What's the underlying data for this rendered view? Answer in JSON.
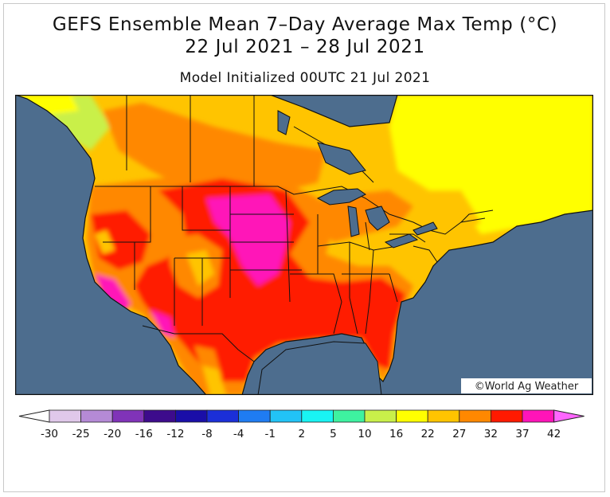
{
  "header": {
    "title": "GEFS Ensemble Mean 7–Day Average Max Temp (°C)",
    "dates": "22 Jul 2021 – 28 Jul 2021",
    "init": "Model Initialized 00UTC 21 Jul 2021"
  },
  "map": {
    "ocean_color": "#4d6d8e",
    "copyright": "©World Ag Weather"
  },
  "legend": {
    "labels": [
      "-30",
      "-25",
      "-20",
      "-16",
      "-12",
      "-8",
      "-4",
      "-1",
      "2",
      "5",
      "10",
      "16",
      "22",
      "27",
      "32",
      "37",
      "42"
    ],
    "colors": [
      "#ffffff",
      "#e0c8ea",
      "#b58ad6",
      "#8033b8",
      "#3d0b8c",
      "#1a0ea8",
      "#1b2fd8",
      "#1f7cf2",
      "#22c3f6",
      "#19f3f3",
      "#3ef2a0",
      "#c9f04a",
      "#ffff00",
      "#ffc400",
      "#ff8800",
      "#ff1a00",
      "#ff14b8",
      "#ff66ff"
    ]
  }
}
